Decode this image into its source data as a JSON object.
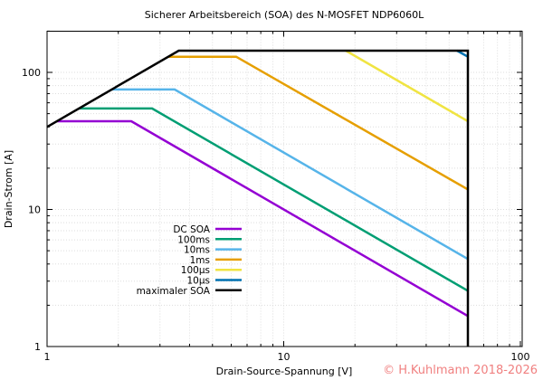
{
  "chart_data": {
    "type": "line",
    "title": "Sicherer Arbeitsbereich (SOA) des N-MOSFET NDP6060L",
    "xlabel": "Drain-Source-Spannung [V]",
    "ylabel": "Drain-Strom [A]",
    "xscale": "log",
    "yscale": "log",
    "xlim": [
      1,
      100
    ],
    "ylim": [
      1,
      200
    ],
    "x_ticks": [
      "1",
      "10",
      "100"
    ],
    "y_ticks": [
      "1",
      "10",
      "100"
    ],
    "grid": true,
    "legend_position": "bottom-left",
    "series": [
      {
        "name": "DC SOA",
        "color": "#9400d3",
        "points": [
          [
            1.1,
            44
          ],
          [
            2.27,
            44
          ],
          [
            60,
            1.67
          ]
        ]
      },
      {
        "name": "100ms",
        "color": "#009e73",
        "points": [
          [
            1.36,
            54.5
          ],
          [
            2.78,
            54.5
          ],
          [
            60,
            2.55
          ]
        ]
      },
      {
        "name": "10ms",
        "color": "#56b4e9",
        "points": [
          [
            1.87,
            75
          ],
          [
            3.46,
            75
          ],
          [
            60,
            4.35
          ]
        ]
      },
      {
        "name": "1ms",
        "color": "#e69f00",
        "points": [
          [
            3.25,
            130
          ],
          [
            6.3,
            130
          ],
          [
            60,
            14
          ]
        ]
      },
      {
        "name": "100µs",
        "color": "#f0e442",
        "points": [
          [
            18.3,
            144
          ],
          [
            60,
            44
          ]
        ]
      },
      {
        "name": "10µs",
        "color": "#0072b2",
        "points": [
          [
            54,
            144
          ],
          [
            60,
            130
          ]
        ]
      },
      {
        "name": "maximaler SOA",
        "color": "#000000",
        "points": [
          [
            1,
            40
          ],
          [
            3.6,
            144
          ],
          [
            60,
            144
          ],
          [
            60,
            1
          ]
        ]
      }
    ]
  },
  "watermark": "© H.Kuhlmann 2018-2026"
}
